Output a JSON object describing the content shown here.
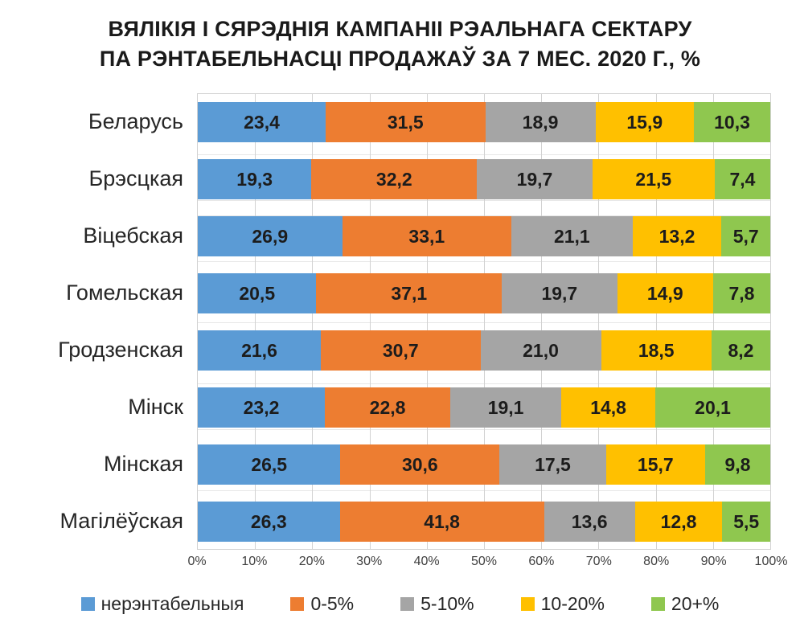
{
  "title": {
    "line1": "ВЯЛІКІЯ І СЯРЭДНІЯ КАМПАНІІ РЭАЛЬНАГА СЕКТАРУ",
    "line2": "ПА РЭНТАБЕЛЬНАСЦІ ПРОДАЖАЎ ЗА 7 МЕС. 2020 Г., %"
  },
  "chart_data": {
    "type": "bar",
    "orientation": "horizontal",
    "stacked": true,
    "title": "ВЯЛІКІЯ І СЯРЭДНІЯ КАМПАНІІ РЭАЛЬНАГА СЕКТАРУ ПА РЭНТАБЕЛЬНАСЦІ ПРОДАЖАЎ ЗА 7 МЕС. 2020 Г., %",
    "categories": [
      "Беларусь",
      "Брэсцкая",
      "Віцебская",
      "Гомельская",
      "Гродзенская",
      "Мінск",
      "Мінская",
      "Магілёўская"
    ],
    "series": [
      {
        "name": "нерэнтабельныя",
        "color": "#5B9BD5",
        "values": [
          23.4,
          19.3,
          26.9,
          20.5,
          21.6,
          23.2,
          26.5,
          26.3
        ],
        "labels": [
          "23,4",
          "19,3",
          "26,9",
          "20,5",
          "21,6",
          "23,2",
          "26,5",
          "26,3"
        ]
      },
      {
        "name": "0-5%",
        "color": "#ED7D31",
        "values": [
          31.5,
          32.2,
          33.1,
          37.1,
          30.7,
          22.8,
          30.6,
          41.8
        ],
        "labels": [
          "31,5",
          "32,2",
          "33,1",
          "37,1",
          "30,7",
          "22,8",
          "30,6",
          "41,8"
        ]
      },
      {
        "name": "5-10%",
        "color": "#A5A5A5",
        "values": [
          18.9,
          19.7,
          21.1,
          19.7,
          21.0,
          19.1,
          17.5,
          13.6
        ],
        "labels": [
          "18,9",
          "19,7",
          "21,1",
          "19,7",
          "21,0",
          "19,1",
          "17,5",
          "13,6"
        ]
      },
      {
        "name": "10-20%",
        "color": "#FFC000",
        "values": [
          15.9,
          21.5,
          13.2,
          14.9,
          18.5,
          14.8,
          15.7,
          12.8
        ],
        "labels": [
          "15,9",
          "21,5",
          "13,2",
          "14,9",
          "18,5",
          "14,8",
          "15,7",
          "12,8"
        ]
      },
      {
        "name": "20+%",
        "color": "#8FC74F",
        "values": [
          10.3,
          7.4,
          5.7,
          7.8,
          8.2,
          20.1,
          9.8,
          5.5
        ],
        "labels": [
          "10,3",
          "7,4",
          "5,7",
          "7,8",
          "8,2",
          "20,1",
          "9,8",
          "5,5"
        ]
      }
    ],
    "x_axis": {
      "min": 0,
      "max": 100,
      "tick_step": 10,
      "ticks": [
        "0%",
        "10%",
        "20%",
        "30%",
        "40%",
        "50%",
        "60%",
        "70%",
        "80%",
        "90%",
        "100%"
      ]
    },
    "legend": {
      "position": "bottom",
      "entries": [
        "нерэнтабельныя",
        "0-5%",
        "5-10%",
        "10-20%",
        "20+%"
      ]
    },
    "grid": true,
    "gridline_color": "#d2d2d2",
    "data_label_color": "#1c1c1c",
    "background_color": "#ffffff"
  }
}
